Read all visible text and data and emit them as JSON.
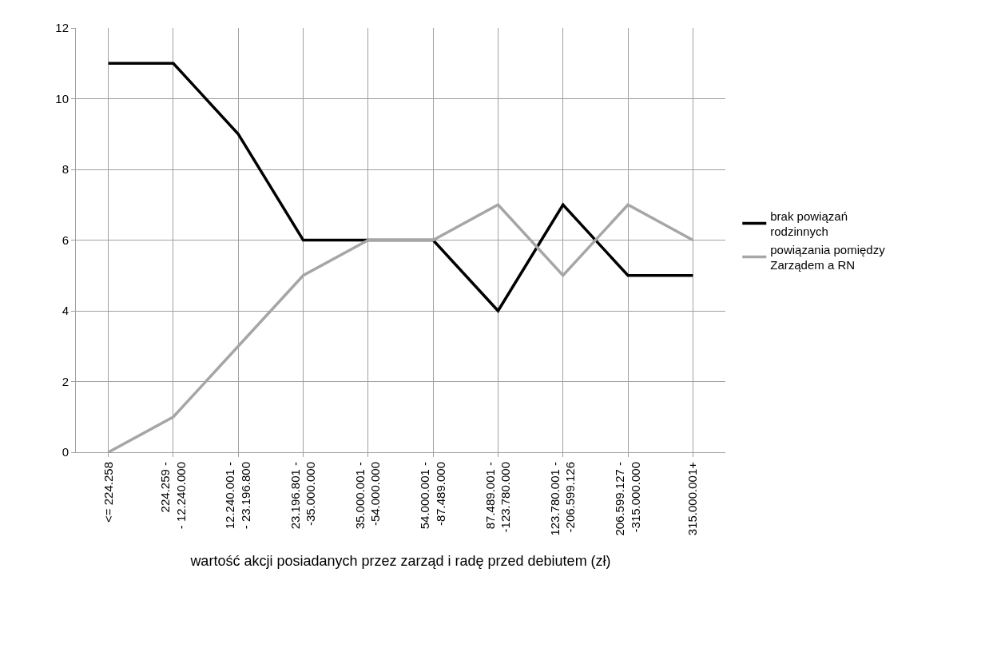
{
  "chart_data": {
    "type": "line",
    "xlabel": "wartość akcji posiadanych przez zarząd i radę przed debiutem (zł)",
    "categories": [
      "<= 224.258",
      "224.259 -\n- 12.240.000",
      "12.240.001 -\n- 23.196.800",
      "23.196.801 -\n-35.000.000",
      "35.000.001 -\n-54.000.000",
      "54.000.001 -\n-87.489.000",
      "87.489.001 -\n-123.780.000",
      "123.780.001 -\n-206.599.126",
      "206.599.127 -\n-315.000.000",
      "315.000.001+"
    ],
    "series": [
      {
        "name": "brak powiązań rodzinnych",
        "color": "#000000",
        "values": [
          11,
          11,
          9,
          6,
          6,
          6,
          4,
          7,
          5,
          5
        ]
      },
      {
        "name": "powiązania pomiędzy Zarządem a RN",
        "color": "#a6a6a6",
        "values": [
          0,
          1,
          3,
          5,
          6,
          6,
          7,
          5,
          7,
          6
        ]
      }
    ],
    "ylim": [
      0,
      12
    ],
    "yticks": [
      0,
      2,
      4,
      6,
      8,
      10,
      12
    ],
    "grid": true,
    "legend": "right",
    "marker": "none",
    "line_style": "solid"
  }
}
